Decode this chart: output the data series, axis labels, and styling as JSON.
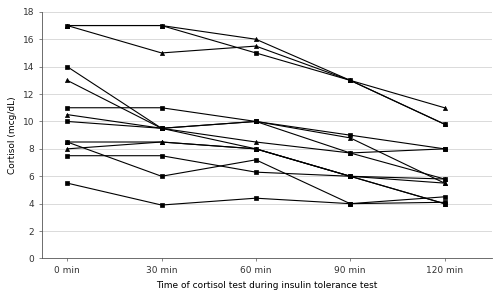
{
  "x_ticks": [
    0,
    30,
    60,
    90,
    120
  ],
  "x_tick_labels": [
    "0 min",
    "30 min",
    "60 min",
    "90 min",
    "120 min"
  ],
  "xlabel": "Time of cortisol test during insulin tolerance test",
  "ylabel": "Cortisol (mcg/dL)",
  "ylim": [
    0,
    18
  ],
  "yticks": [
    0,
    2,
    4,
    6,
    8,
    10,
    12,
    14,
    16,
    18
  ],
  "patients": [
    [
      17.0,
      17.0,
      16.0,
      13.0,
      11.0
    ],
    [
      17.0,
      17.0,
      15.0,
      13.0,
      9.8
    ],
    [
      17.0,
      15.0,
      15.5,
      13.0,
      9.8
    ],
    [
      14.0,
      9.5,
      10.0,
      7.7,
      8.0
    ],
    [
      13.0,
      9.5,
      10.0,
      8.8,
      5.5
    ],
    [
      11.0,
      11.0,
      10.0,
      9.0,
      8.0
    ],
    [
      10.5,
      9.5,
      8.5,
      7.7,
      5.8
    ],
    [
      10.0,
      9.5,
      8.0,
      6.0,
      4.0
    ],
    [
      8.5,
      8.5,
      8.0,
      6.0,
      5.5
    ],
    [
      8.5,
      6.0,
      7.2,
      4.0,
      4.5
    ],
    [
      8.0,
      8.5,
      8.0,
      6.0,
      4.0
    ],
    [
      7.5,
      7.5,
      6.3,
      6.0,
      5.8
    ],
    [
      5.5,
      3.9,
      4.4,
      4.0,
      4.1
    ]
  ],
  "markers": [
    "^",
    "s",
    "^",
    "s",
    "^",
    "s",
    "^",
    "s",
    "^",
    "s",
    "^",
    "s",
    "s"
  ],
  "line_color": "#000000",
  "marker_color": "#000000",
  "background_color": "#ffffff",
  "plot_bg_color": "#ffffff",
  "figsize": [
    5.0,
    2.98
  ],
  "dpi": 100
}
